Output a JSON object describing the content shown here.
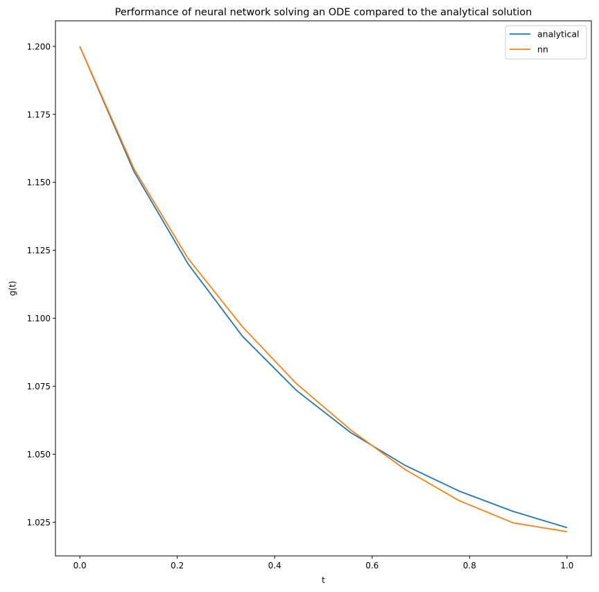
{
  "chart_data": {
    "type": "line",
    "title": "Performance of neural network solving an ODE compared to the analytical solution",
    "xlabel": "t",
    "ylabel": "g(t)",
    "xlim": [
      -0.05,
      1.05
    ],
    "ylim": [
      1.0126,
      1.2094
    ],
    "x_ticks": [
      "0.0",
      "0.2",
      "0.4",
      "0.6",
      "0.8",
      "1.0"
    ],
    "x_tick_values": [
      0.0,
      0.2,
      0.4,
      0.6,
      0.8,
      1.0
    ],
    "y_ticks": [
      "1.025",
      "1.050",
      "1.075",
      "1.100",
      "1.125",
      "1.150",
      "1.175",
      "1.200"
    ],
    "y_tick_values": [
      1.025,
      1.05,
      1.075,
      1.1,
      1.125,
      1.15,
      1.175,
      1.2
    ],
    "grid": false,
    "legend_position": "top-right",
    "x": [
      0.0,
      0.1111,
      0.2222,
      0.3333,
      0.4444,
      0.5556,
      0.6667,
      0.7778,
      0.8889,
      1.0
    ],
    "series": [
      {
        "name": "analytical",
        "color": "#1f77b4",
        "values": [
          1.2,
          1.154,
          1.12,
          1.0935,
          1.0735,
          1.058,
          1.046,
          1.0365,
          1.029,
          1.023
        ]
      },
      {
        "name": "nn",
        "color": "#ff7f0e",
        "values": [
          1.2,
          1.155,
          1.122,
          1.097,
          1.076,
          1.059,
          1.0445,
          1.033,
          1.0248,
          1.0215
        ]
      }
    ]
  }
}
